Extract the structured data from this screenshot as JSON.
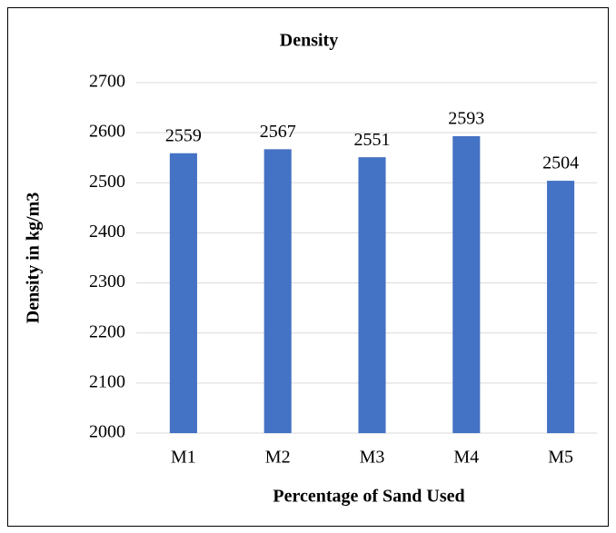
{
  "chart_data": {
    "type": "bar",
    "title": "Density",
    "x_label": "Percentage of Sand Used",
    "y_label": "Density in kg/m3",
    "categories": [
      "M1",
      "M2",
      "M3",
      "M4",
      "M5"
    ],
    "values": [
      2559,
      2567,
      2551,
      2593,
      2504
    ],
    "color": "#4472c4",
    "ylim": [
      2000,
      2700
    ],
    "yticks": [
      2000,
      2100,
      2200,
      2300,
      2400,
      2500,
      2600,
      2700
    ],
    "grid": true,
    "data_labels": true
  }
}
